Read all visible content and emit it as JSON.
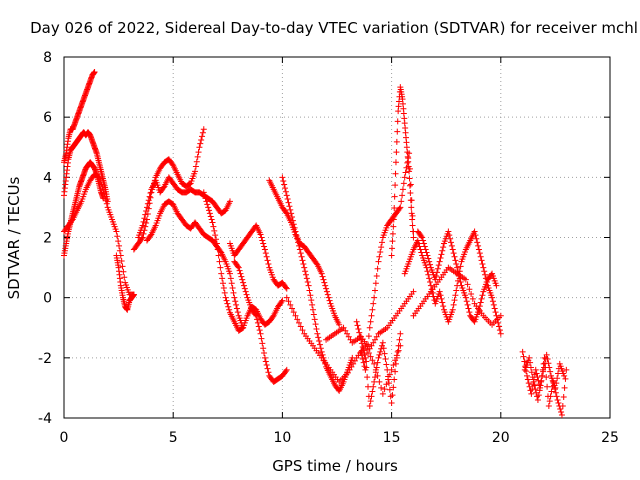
{
  "chart_data": {
    "type": "scatter",
    "title": "Day 026 of 2022, Sidereal Day-to-day VTEC variation (SDTVAR) for receiver mchl",
    "xlabel": "GPS time / hours",
    "ylabel": "SDTVAR / TECUs",
    "xlim": [
      0,
      25
    ],
    "ylim": [
      -4,
      8
    ],
    "xticks": [
      0,
      5,
      10,
      15,
      20,
      25
    ],
    "yticks": [
      -4,
      -2,
      0,
      2,
      4,
      6,
      8
    ],
    "grid": true,
    "marker": "+",
    "color": "#ff0000",
    "traces": [
      {
        "x": [
          0.0,
          0.1,
          0.2,
          0.3,
          0.4,
          0.5,
          0.6,
          0.7,
          0.8,
          0.9,
          1.0,
          1.1,
          1.2,
          1.3,
          1.4
        ],
        "y": [
          4.5,
          4.8,
          5.3,
          5.6,
          5.6,
          5.8,
          6.0,
          6.2,
          6.4,
          6.6,
          6.8,
          7.0,
          7.2,
          7.4,
          7.5
        ]
      },
      {
        "x": [
          0.0,
          0.1,
          0.2,
          0.3,
          0.4,
          0.5,
          0.6,
          0.7,
          0.8,
          0.9,
          1.0,
          1.1,
          1.2,
          1.3,
          1.4,
          1.5,
          1.6,
          1.7,
          1.8,
          1.9,
          2.0
        ],
        "y": [
          3.4,
          4.0,
          4.6,
          4.9,
          5.0,
          5.1,
          5.2,
          5.3,
          5.4,
          5.5,
          5.4,
          5.5,
          5.4,
          5.2,
          5.0,
          4.8,
          4.5,
          4.2,
          3.9,
          3.6,
          3.2
        ]
      },
      {
        "x": [
          0.0,
          0.1,
          0.2,
          0.3,
          0.4,
          0.5,
          0.6,
          0.7,
          0.8,
          0.9,
          1.0,
          1.1,
          1.2,
          1.3,
          1.4,
          1.5,
          1.6,
          1.7,
          1.8
        ],
        "y": [
          1.4,
          1.8,
          2.2,
          2.5,
          2.8,
          3.1,
          3.4,
          3.7,
          3.9,
          4.1,
          4.3,
          4.4,
          4.5,
          4.4,
          4.3,
          4.1,
          3.8,
          3.5,
          3.3
        ]
      },
      {
        "x": [
          0.0,
          0.2,
          0.4,
          0.6,
          0.8,
          1.0,
          1.2,
          1.4,
          1.6,
          1.8,
          2.0,
          2.2,
          2.4,
          2.6,
          2.8,
          3.0,
          3.2
        ],
        "y": [
          2.2,
          2.4,
          2.6,
          2.9,
          3.2,
          3.6,
          3.9,
          4.1,
          4.0,
          3.6,
          3.0,
          2.6,
          2.2,
          1.4,
          0.5,
          0.1,
          0.1
        ]
      },
      {
        "x": [
          2.4,
          2.5,
          2.6,
          2.7,
          2.8,
          2.9,
          3.0,
          3.1,
          3.2
        ],
        "y": [
          1.4,
          1.0,
          0.4,
          0.0,
          -0.3,
          -0.4,
          -0.1,
          0.0,
          0.1
        ]
      },
      {
        "x": [
          3.2,
          3.4,
          3.6,
          3.8,
          4.0,
          4.2,
          4.4,
          4.6,
          4.8,
          5.0,
          5.2,
          5.4,
          5.6,
          5.8,
          6.0,
          6.2,
          6.4
        ],
        "y": [
          1.6,
          1.8,
          2.0,
          2.6,
          3.5,
          4.0,
          4.3,
          4.5,
          4.6,
          4.4,
          4.1,
          3.8,
          3.7,
          3.8,
          4.2,
          5.0,
          5.6
        ]
      },
      {
        "x": [
          3.4,
          3.6,
          3.8,
          4.0,
          4.2,
          4.4,
          4.6,
          4.8,
          5.0,
          5.2,
          5.4,
          5.6,
          5.8,
          6.0,
          6.2,
          6.4,
          6.6,
          6.8,
          7.0,
          7.2,
          7.4,
          7.6
        ],
        "y": [
          2.0,
          2.4,
          3.0,
          3.6,
          3.9,
          3.5,
          3.7,
          4.0,
          3.8,
          3.6,
          3.5,
          3.5,
          3.6,
          3.5,
          3.5,
          3.4,
          3.3,
          3.2,
          3.0,
          2.8,
          2.9,
          3.2
        ]
      },
      {
        "x": [
          3.8,
          4.0,
          4.2,
          4.4,
          4.6,
          4.8,
          5.0,
          5.2,
          5.4,
          5.6,
          5.8,
          6.0,
          6.2,
          6.4,
          6.6,
          6.8,
          7.0,
          7.2,
          7.4,
          7.6,
          7.8,
          8.0,
          8.2
        ],
        "y": [
          1.9,
          2.1,
          2.4,
          2.8,
          3.1,
          3.2,
          3.1,
          2.8,
          2.6,
          2.4,
          2.3,
          2.5,
          2.3,
          2.1,
          2.0,
          1.9,
          1.7,
          1.5,
          1.2,
          0.8,
          0.0,
          -0.6,
          -1.0
        ]
      },
      {
        "x": [
          6.4,
          6.6,
          6.8,
          7.0,
          7.2,
          7.4,
          7.6,
          7.8,
          8.0,
          8.2,
          8.4,
          8.6,
          8.8,
          9.0,
          9.2,
          9.4,
          9.6,
          9.8,
          10.0
        ],
        "y": [
          3.5,
          3.0,
          2.5,
          1.8,
          0.8,
          0.0,
          -0.5,
          -0.8,
          -1.1,
          -1.0,
          -0.6,
          -0.3,
          -0.4,
          -0.7,
          -0.9,
          -0.8,
          -0.6,
          -0.3,
          -0.1
        ]
      },
      {
        "x": [
          7.6,
          7.8,
          8.0,
          8.2,
          8.4,
          8.6,
          8.8,
          9.0,
          9.2,
          9.4,
          9.6,
          9.8,
          10.0,
          10.2
        ],
        "y": [
          1.8,
          1.4,
          1.6,
          1.8,
          2.0,
          2.2,
          2.4,
          2.1,
          1.6,
          1.0,
          0.6,
          0.4,
          0.5,
          0.3
        ]
      },
      {
        "x": [
          7.8,
          8.0,
          8.2,
          8.4,
          8.6,
          8.8,
          9.0,
          9.2,
          9.4,
          9.6,
          9.8,
          10.0,
          10.2
        ],
        "y": [
          1.2,
          1.0,
          0.5,
          0.0,
          -0.4,
          -0.6,
          -1.2,
          -2.0,
          -2.6,
          -2.8,
          -2.7,
          -2.6,
          -2.4
        ]
      },
      {
        "x": [
          9.4,
          9.6,
          9.8,
          10.0,
          10.2,
          10.4,
          10.6,
          10.8,
          11.0,
          11.2,
          11.4,
          11.6,
          11.8,
          12.0,
          12.2,
          12.4,
          12.6
        ],
        "y": [
          3.9,
          3.6,
          3.3,
          3.0,
          2.8,
          2.5,
          2.1,
          1.8,
          1.7,
          1.5,
          1.3,
          1.1,
          0.8,
          0.3,
          -0.2,
          -0.6,
          -0.9
        ]
      },
      {
        "x": [
          10.0,
          10.2,
          10.4,
          10.6,
          10.8,
          11.0,
          11.2,
          11.4,
          11.6,
          11.8,
          12.0,
          12.2,
          12.4,
          12.6,
          12.8,
          13.0,
          13.2
        ],
        "y": [
          4.0,
          3.4,
          2.8,
          2.2,
          1.6,
          1.0,
          0.4,
          -0.4,
          -1.2,
          -1.8,
          -2.3,
          -2.6,
          -2.9,
          -3.1,
          -2.8,
          -2.4,
          -2.0
        ]
      },
      {
        "x": [
          10.2,
          10.6,
          11.0,
          11.4,
          11.8,
          12.2,
          12.6,
          13.0,
          13.4,
          13.8,
          14.2,
          14.6,
          15.0,
          15.4
        ],
        "y": [
          0.0,
          -0.6,
          -1.2,
          -1.6,
          -2.0,
          -2.4,
          -2.8,
          -2.5,
          -2.0,
          -1.6,
          -2.2,
          -3.2,
          -2.4,
          -1.6
        ]
      },
      {
        "x": [
          12.0,
          12.4,
          12.8,
          13.2,
          13.6,
          14.0,
          14.4,
          14.8,
          15.2,
          15.6,
          16.0
        ],
        "y": [
          -1.4,
          -1.2,
          -1.0,
          -1.5,
          -1.3,
          -1.7,
          -1.2,
          -1.0,
          -0.6,
          -0.2,
          0.2
        ]
      },
      {
        "x": [
          13.4,
          13.6,
          13.8,
          14.0,
          14.2,
          14.4,
          14.6,
          14.8,
          15.0,
          15.2,
          15.4
        ],
        "y": [
          -0.8,
          -1.4,
          -2.0,
          -3.6,
          -2.8,
          -2.0,
          -1.5,
          -2.4,
          -3.5,
          -2.2,
          -1.2
        ]
      },
      {
        "x": [
          13.6,
          13.8,
          14.0,
          14.2,
          14.4,
          14.6,
          14.8,
          15.0,
          15.2,
          15.4,
          15.6,
          15.8,
          16.0
        ],
        "y": [
          -1.8,
          -2.4,
          -1.0,
          0.0,
          1.2,
          2.0,
          2.4,
          2.6,
          2.8,
          3.0,
          4.0,
          4.8,
          2.2
        ]
      },
      {
        "x": [
          15.0,
          15.1,
          15.2,
          15.3,
          15.4,
          15.5,
          15.6,
          15.7,
          15.8,
          15.9,
          16.0
        ],
        "y": [
          1.4,
          2.6,
          4.5,
          6.2,
          7.0,
          6.6,
          5.8,
          5.0,
          4.2,
          3.0,
          2.0
        ]
      },
      {
        "x": [
          15.6,
          15.8,
          16.0,
          16.2,
          16.4,
          16.6,
          16.8,
          17.0,
          17.2,
          17.4,
          17.6,
          17.8,
          18.0,
          18.2,
          18.4,
          18.6,
          18.8,
          19.0,
          19.2,
          19.4,
          19.6,
          19.8,
          20.0
        ],
        "y": [
          0.8,
          1.2,
          1.6,
          1.9,
          1.4,
          1.0,
          0.4,
          -0.2,
          0.2,
          -0.4,
          -0.8,
          -0.4,
          0.4,
          1.2,
          1.6,
          1.9,
          2.2,
          1.6,
          1.0,
          0.4,
          0.0,
          -0.6,
          -1.2
        ]
      },
      {
        "x": [
          16.2,
          16.4,
          16.6,
          16.8,
          17.0,
          17.2,
          17.4,
          17.6,
          17.8,
          18.0,
          18.2,
          18.4,
          18.6,
          18.8,
          19.0,
          19.2,
          19.4,
          19.6,
          19.8
        ],
        "y": [
          2.2,
          2.0,
          1.5,
          1.0,
          0.6,
          1.2,
          1.8,
          2.2,
          1.6,
          1.0,
          0.4,
          0.0,
          -0.6,
          -0.8,
          -0.4,
          0.2,
          0.6,
          0.8,
          0.4
        ]
      },
      {
        "x": [
          16.0,
          16.4,
          16.8,
          17.2,
          17.6,
          18.0,
          18.4,
          18.8,
          19.2,
          19.6,
          20.0
        ],
        "y": [
          -0.6,
          -0.2,
          0.2,
          0.6,
          1.0,
          0.8,
          0.6,
          -0.2,
          -0.6,
          -0.9,
          -0.6
        ]
      },
      {
        "x": [
          21.0,
          21.2,
          21.4,
          21.6,
          21.8,
          22.0,
          22.2,
          22.4,
          22.6,
          22.8,
          23.0
        ],
        "y": [
          -1.8,
          -2.6,
          -3.2,
          -2.4,
          -3.0,
          -2.0,
          -3.6,
          -2.8,
          -3.4,
          -3.9,
          -2.4
        ]
      },
      {
        "x": [
          21.1,
          21.3,
          21.5,
          21.7,
          21.9,
          22.1,
          22.3,
          22.5,
          22.7,
          22.9
        ],
        "y": [
          -2.4,
          -2.0,
          -2.8,
          -3.4,
          -2.6,
          -1.9,
          -2.6,
          -3.0,
          -2.2,
          -2.6
        ]
      }
    ]
  }
}
